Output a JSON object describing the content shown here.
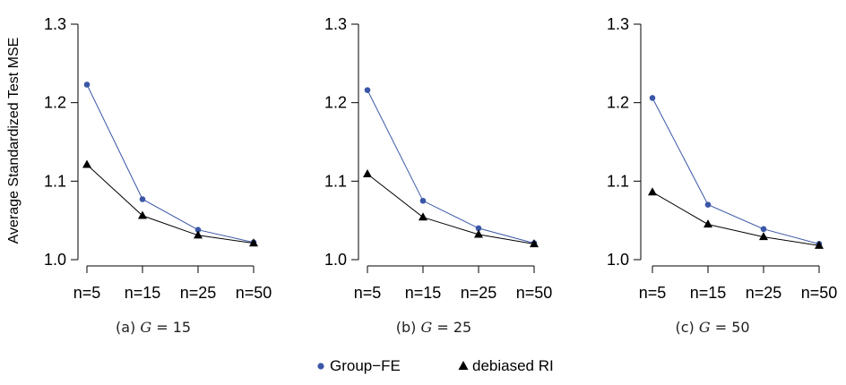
{
  "chart_data": [
    {
      "type": "line",
      "caption": "(a) G = 15",
      "caption_prefix": "(a)",
      "caption_var": "G",
      "caption_suffix": "= 15",
      "ylabel": "Average Standardized Test MSE",
      "ylim": [
        1.0,
        1.3
      ],
      "yticks": [
        "1.0",
        "1.1",
        "1.2",
        "1.3"
      ],
      "categories": [
        "n=5",
        "n=15",
        "n=25",
        "n=50"
      ],
      "series": [
        {
          "name": "Group−FE",
          "color": "#3a57a7",
          "marker": "circle",
          "values": [
            1.223,
            1.077,
            1.038,
            1.022
          ]
        },
        {
          "name": "debiased RI",
          "color": "#000000",
          "marker": "triangle",
          "values": [
            1.121,
            1.056,
            1.031,
            1.021
          ]
        }
      ]
    },
    {
      "type": "line",
      "caption": "(b) G = 25",
      "caption_prefix": "(b)",
      "caption_var": "G",
      "caption_suffix": "= 25",
      "ylabel": "",
      "ylim": [
        1.0,
        1.3
      ],
      "yticks": [
        "1.0",
        "1.1",
        "1.2",
        "1.3"
      ],
      "categories": [
        "n=5",
        "n=15",
        "n=25",
        "n=50"
      ],
      "series": [
        {
          "name": "Group−FE",
          "color": "#3a57a7",
          "marker": "circle",
          "values": [
            1.216,
            1.075,
            1.04,
            1.021
          ]
        },
        {
          "name": "debiased RI",
          "color": "#000000",
          "marker": "triangle",
          "values": [
            1.109,
            1.054,
            1.032,
            1.02
          ]
        }
      ]
    },
    {
      "type": "line",
      "caption": "(c) G = 50",
      "caption_prefix": "(c)",
      "caption_var": "G",
      "caption_suffix": "= 50",
      "ylabel": "",
      "ylim": [
        1.0,
        1.3
      ],
      "yticks": [
        "1.0",
        "1.1",
        "1.2",
        "1.3"
      ],
      "categories": [
        "n=5",
        "n=15",
        "n=25",
        "n=50"
      ],
      "series": [
        {
          "name": "Group−FE",
          "color": "#3a57a7",
          "marker": "circle",
          "values": [
            1.206,
            1.07,
            1.039,
            1.02
          ]
        },
        {
          "name": "debiased RI",
          "color": "#000000",
          "marker": "triangle",
          "values": [
            1.086,
            1.045,
            1.029,
            1.018
          ]
        }
      ]
    }
  ],
  "legend": {
    "placement": "bottom-center",
    "items": [
      {
        "label": "Group−FE",
        "marker": "circle",
        "color": "#3a57a7"
      },
      {
        "label": "debiased RI",
        "marker": "triangle",
        "color": "#000000"
      }
    ]
  }
}
